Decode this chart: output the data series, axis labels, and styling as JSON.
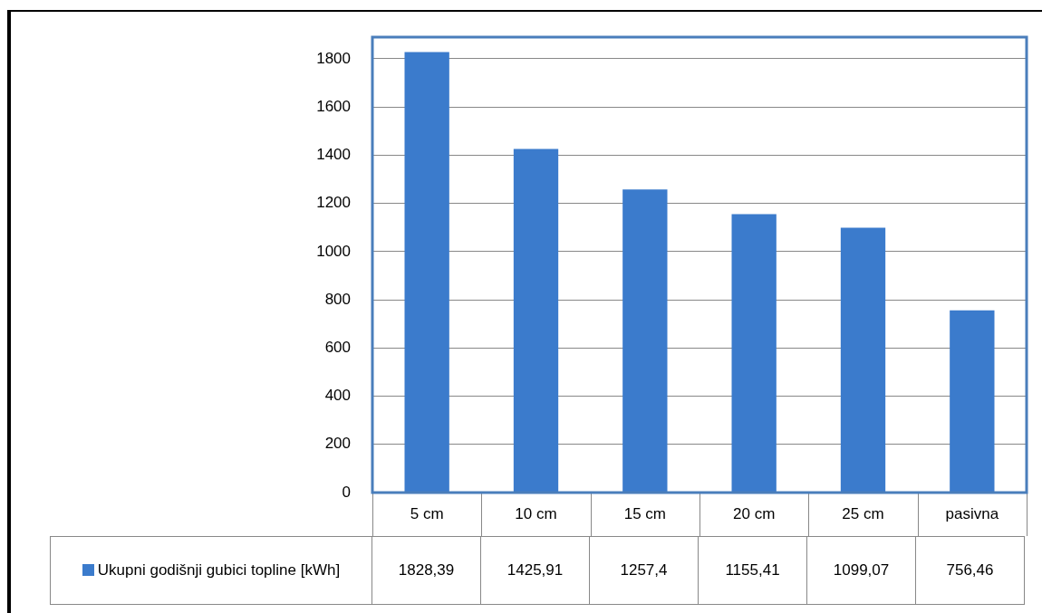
{
  "chart_data": {
    "type": "bar",
    "categories": [
      "5 cm",
      "10 cm",
      "15 cm",
      "20 cm",
      "25 cm",
      "pasivna"
    ],
    "series": [
      {
        "name": "Ukupni godišnji gubici topline [kWh]",
        "color": "#3b7bcc",
        "values": [
          1828.39,
          1425.91,
          1257.4,
          1155.41,
          1099.07,
          756.46
        ],
        "value_labels": [
          "1828,39",
          "1425,91",
          "1257,4",
          "1155,41",
          "1099,07",
          "756,46"
        ]
      }
    ],
    "ylim": [
      0,
      1890
    ],
    "yticks": [
      0,
      200,
      400,
      600,
      800,
      1000,
      1200,
      1400,
      1600,
      1800
    ],
    "grid": "y",
    "legend": "bottom left"
  }
}
